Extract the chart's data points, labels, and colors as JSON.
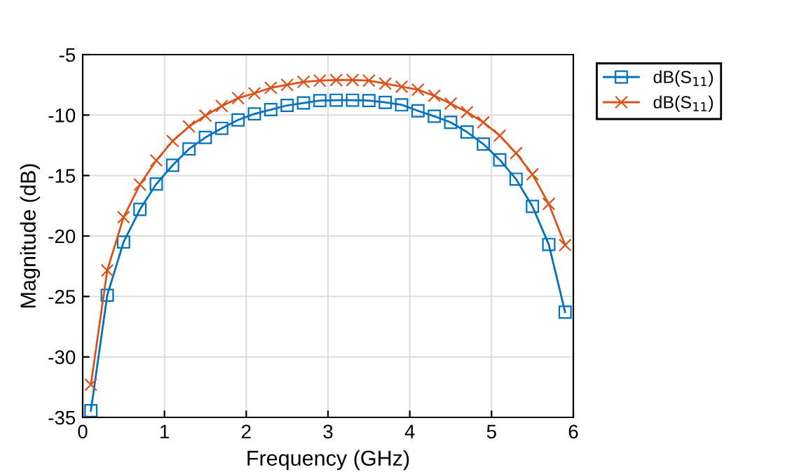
{
  "chart_data": {
    "type": "line",
    "xlabel": "Frequency (GHz)",
    "ylabel": "Magnitude (dB)",
    "x": [
      0.1,
      0.3,
      0.5,
      0.7,
      0.9,
      1.1,
      1.3,
      1.5,
      1.7,
      1.9,
      2.1,
      2.3,
      2.5,
      2.7,
      2.9,
      3.1,
      3.3,
      3.5,
      3.7,
      3.9,
      4.1,
      4.3,
      4.5,
      4.7,
      4.9,
      5.1,
      5.3,
      5.5,
      5.7,
      5.9
    ],
    "series": [
      {
        "name": "dB(S$_{11}$)",
        "color": "#0072bd",
        "marker": "square",
        "values": [
          -34.45,
          -24.9,
          -20.5,
          -17.8,
          -15.7,
          -14.15,
          -12.8,
          -11.85,
          -11.1,
          -10.4,
          -9.9,
          -9.55,
          -9.2,
          -9.0,
          -8.8,
          -8.77,
          -8.77,
          -8.8,
          -8.95,
          -9.15,
          -9.65,
          -10.1,
          -10.6,
          -11.4,
          -12.4,
          -13.7,
          -15.3,
          -17.55,
          -20.7,
          -26.3
        ]
      },
      {
        "name": "dB(S$_{11}$)",
        "color": "#d95319",
        "marker": "cross",
        "values": [
          -32.3,
          -22.85,
          -18.45,
          -15.75,
          -13.75,
          -12.15,
          -10.95,
          -10.05,
          -9.25,
          -8.6,
          -8.2,
          -7.75,
          -7.5,
          -7.25,
          -7.15,
          -7.1,
          -7.1,
          -7.15,
          -7.4,
          -7.65,
          -7.9,
          -8.4,
          -9.05,
          -9.75,
          -10.6,
          -11.7,
          -13.15,
          -14.9,
          -17.35,
          -20.75
        ]
      }
    ],
    "xlim": [
      0,
      6
    ],
    "xticks": [
      0,
      1,
      2,
      3,
      4,
      5,
      6
    ],
    "ylim": [
      -35,
      -5
    ],
    "yticks": [
      -35,
      -30,
      -25,
      -20,
      -15,
      -10,
      -5
    ],
    "grid": true,
    "legend": "top right",
    "line_style": "solid"
  }
}
